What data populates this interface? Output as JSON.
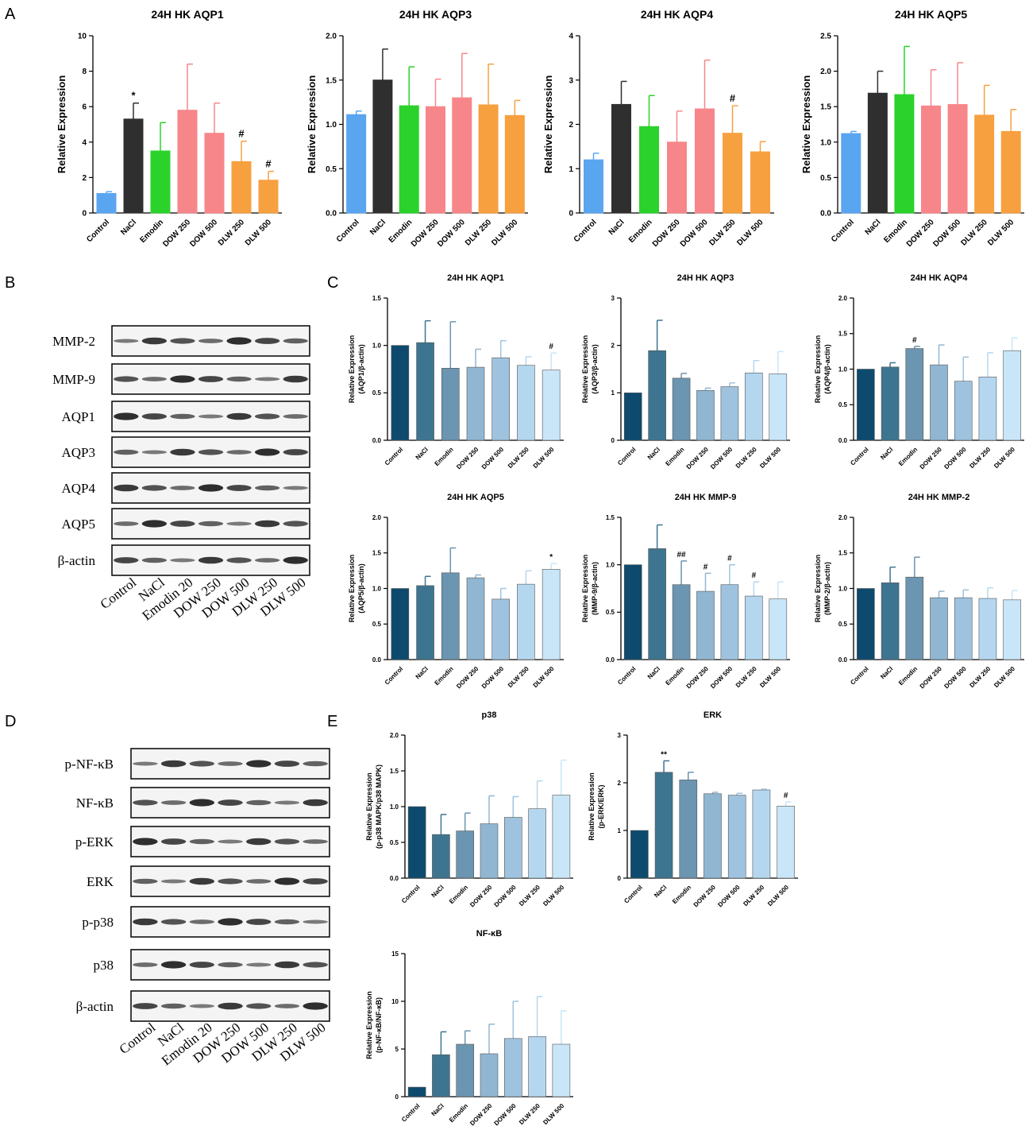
{
  "panel_labels": [
    "A",
    "B",
    "C",
    "D",
    "E"
  ],
  "colors": {
    "a_palette": [
      "#5aa5f0",
      "#2f2f2f",
      "#2bd22b",
      "#f7868a",
      "#f7868a",
      "#f7a040",
      "#f7a040"
    ],
    "blue_palette": [
      "#0d4a6e",
      "#3d7590",
      "#6b95b0",
      "#90b6d2",
      "#9fc3de",
      "#b4d7ef",
      "#c9e6f8"
    ]
  },
  "blots": {
    "B": {
      "bands": [
        "MMP-2",
        "MMP-9",
        "AQP1",
        "AQP3",
        "AQP4",
        "AQP5",
        "β-actin"
      ],
      "lanes": [
        "Control",
        "NaCl",
        "Emodin 20",
        "DOW 250",
        "DOW 500",
        "DLW 250",
        "DLW 500"
      ]
    },
    "D": {
      "bands": [
        "p-NF-κB",
        "NF-κB",
        "p-ERK",
        "ERK",
        "p-p38",
        "p38",
        "β-actin"
      ],
      "lanes": [
        "Control",
        "NaCl",
        "Emodin 20",
        "DOW 250",
        "DOW 500",
        "DLW 250",
        "DLW 500"
      ]
    }
  },
  "chart_data": [
    {
      "id": "A1",
      "type": "bar",
      "title": "24H HK AQP1",
      "ylabel": "Relative Expression",
      "ylim": [
        0,
        10
      ],
      "ticks": [
        "0",
        "2",
        "4",
        "6",
        "8",
        "10"
      ],
      "categories": [
        "Control",
        "NaCl",
        "Emodin",
        "DOW 250",
        "DOW 500",
        "DLW 250",
        "DLW 500"
      ],
      "values": [
        1.1,
        5.3,
        3.5,
        5.8,
        4.5,
        2.9,
        1.85
      ],
      "errors": [
        0.1,
        0.9,
        1.6,
        2.6,
        1.7,
        1.15,
        0.5
      ],
      "annotations": [
        "",
        "*",
        "",
        "",
        "",
        "#",
        "#"
      ],
      "palette": "a"
    },
    {
      "id": "A2",
      "type": "bar",
      "title": "24H HK AQP3",
      "ylabel": "Relative Expression",
      "ylim": [
        0,
        2
      ],
      "ticks": [
        "0.0",
        "0.5",
        "1.0",
        "1.5",
        "2.0"
      ],
      "categories": [
        "Control",
        "NaCl",
        "Emodin",
        "DOW 250",
        "DOW 500",
        "DLW 250",
        "DLW 500"
      ],
      "values": [
        1.11,
        1.5,
        1.21,
        1.2,
        1.3,
        1.22,
        1.1
      ],
      "errors": [
        0.04,
        0.35,
        0.44,
        0.31,
        0.5,
        0.46,
        0.17
      ],
      "annotations": [
        "",
        "",
        "",
        "",
        "",
        "",
        ""
      ],
      "palette": "a"
    },
    {
      "id": "A3",
      "type": "bar",
      "title": "24H HK AQP4",
      "ylabel": "Relative Expression",
      "ylim": [
        0,
        4
      ],
      "ticks": [
        "0",
        "1",
        "2",
        "3",
        "4"
      ],
      "categories": [
        "Control",
        "NaCl",
        "Emodin",
        "DOW 250",
        "DOW 500",
        "DLW 250",
        "DLW 500"
      ],
      "values": [
        1.2,
        2.45,
        1.95,
        1.6,
        2.35,
        1.8,
        1.38
      ],
      "errors": [
        0.15,
        0.52,
        0.7,
        0.7,
        1.1,
        0.62,
        0.23
      ],
      "annotations": [
        "",
        "",
        "",
        "",
        "",
        "#",
        ""
      ],
      "palette": "a"
    },
    {
      "id": "A4",
      "type": "bar",
      "title": "24H HK AQP5",
      "ylabel": "Relative Expression",
      "ylim": [
        0,
        2.5
      ],
      "ticks": [
        "0.0",
        "0.5",
        "1.0",
        "1.5",
        "2.0",
        "2.5"
      ],
      "categories": [
        "Control",
        "NaCl",
        "Emodin",
        "DOW 250",
        "DOW 500",
        "DLW 250",
        "DLW 500"
      ],
      "values": [
        1.12,
        1.69,
        1.67,
        1.51,
        1.53,
        1.38,
        1.15
      ],
      "errors": [
        0.03,
        0.31,
        0.68,
        0.51,
        0.59,
        0.42,
        0.31
      ],
      "annotations": [
        "",
        "",
        "",
        "",
        "",
        "",
        ""
      ],
      "palette": "a"
    },
    {
      "id": "C1",
      "type": "bar",
      "title": "24H HK AQP1",
      "ylabel": "Relative Expression",
      "ylabel2": "(AQP1/β-actin)",
      "ylim": [
        0,
        1.5
      ],
      "ticks": [
        "0.0",
        "0.5",
        "1.0",
        "1.5"
      ],
      "categories": [
        "Control",
        "NaCl",
        "Emodin",
        "DOW 250",
        "DOW 500",
        "DLW 250",
        "DLW 500"
      ],
      "values": [
        1.0,
        1.03,
        0.76,
        0.77,
        0.87,
        0.79,
        0.74
      ],
      "errors": [
        0,
        0.23,
        0.49,
        0.19,
        0.18,
        0.09,
        0.18
      ],
      "annotations": [
        "",
        "",
        "",
        "",
        "",
        "",
        "#"
      ],
      "palette": "blue"
    },
    {
      "id": "C2",
      "type": "bar",
      "title": "24H HK AQP3",
      "ylabel": "Relative Expression",
      "ylabel2": "(AQP3/β-actin)",
      "ylim": [
        0,
        3
      ],
      "ticks": [
        "0",
        "1",
        "2",
        "3"
      ],
      "categories": [
        "Control",
        "NaCl",
        "Emodin",
        "DOW 250",
        "DOW 500",
        "DLW 250",
        "DLW 500"
      ],
      "values": [
        1.0,
        1.89,
        1.31,
        1.05,
        1.13,
        1.42,
        1.4
      ],
      "errors": [
        0,
        0.64,
        0.1,
        0.05,
        0.08,
        0.26,
        0.47
      ],
      "annotations": [
        "",
        "",
        "",
        "",
        "",
        "",
        ""
      ],
      "palette": "blue"
    },
    {
      "id": "C3",
      "type": "bar",
      "title": "24H HK AQP4",
      "ylabel": "Relative Expression",
      "ylabel2": "(AQP4/β-actin)",
      "ylim": [
        0,
        2
      ],
      "ticks": [
        "0.0",
        "0.5",
        "1.0",
        "1.5",
        "2.0"
      ],
      "categories": [
        "Control",
        "NaCl",
        "Emodin",
        "DOW 250",
        "DOW 500",
        "DLW 250",
        "DLW 500"
      ],
      "values": [
        1.0,
        1.03,
        1.29,
        1.06,
        0.83,
        0.89,
        1.26
      ],
      "errors": [
        0,
        0.06,
        0.03,
        0.28,
        0.34,
        0.34,
        0.18
      ],
      "annotations": [
        "",
        "",
        "#",
        "",
        "",
        "",
        ""
      ],
      "palette": "blue"
    },
    {
      "id": "C4",
      "type": "bar",
      "title": "24H HK AQP5",
      "ylabel": "Relative Expression",
      "ylabel2": "(AQP5/β-actin)",
      "ylim": [
        0,
        2
      ],
      "ticks": [
        "0.0",
        "0.5",
        "1.0",
        "1.5",
        "2.0"
      ],
      "categories": [
        "Control",
        "NaCl",
        "Emodin",
        "DOW 250",
        "DOW 500",
        "DLW 250",
        "DLW 500"
      ],
      "values": [
        1.0,
        1.04,
        1.22,
        1.15,
        0.85,
        1.06,
        1.27
      ],
      "errors": [
        0,
        0.13,
        0.35,
        0.04,
        0.15,
        0.19,
        0.08
      ],
      "annotations": [
        "",
        "",
        "",
        "",
        "",
        "",
        "*"
      ],
      "palette": "blue"
    },
    {
      "id": "C5",
      "type": "bar",
      "title": "24H HK MMP-9",
      "ylabel": "Relative Expression",
      "ylabel2": "(MMP-9/β-actin)",
      "ylim": [
        0,
        1.5
      ],
      "ticks": [
        "0.0",
        "0.5",
        "1.0",
        "1.5"
      ],
      "categories": [
        "Control",
        "NaCl",
        "Emodin",
        "DOW 250",
        "DOW 500",
        "DLW 250",
        "DLW 500"
      ],
      "values": [
        1.0,
        1.17,
        0.79,
        0.72,
        0.79,
        0.67,
        0.64
      ],
      "errors": [
        0,
        0.25,
        0.25,
        0.19,
        0.21,
        0.15,
        0.18
      ],
      "annotations": [
        "",
        "",
        "##",
        "#",
        "#",
        "#",
        ""
      ],
      "palette": "blue"
    },
    {
      "id": "C6",
      "type": "bar",
      "title": "24H HK MMP-2",
      "ylabel": "Relative Expression",
      "ylabel2": "(MMP-2/β-actin)",
      "ylim": [
        0,
        2
      ],
      "ticks": [
        "0.0",
        "0.5",
        "1.0",
        "1.5",
        "2.0"
      ],
      "categories": [
        "Control",
        "NaCl",
        "Emodin",
        "DOW 250",
        "DOW 500",
        "DLW 250",
        "DLW 500"
      ],
      "values": [
        1.0,
        1.08,
        1.16,
        0.87,
        0.87,
        0.86,
        0.84
      ],
      "errors": [
        0,
        0.22,
        0.28,
        0.09,
        0.11,
        0.15,
        0.13
      ],
      "annotations": [
        "",
        "",
        "",
        "",
        "",
        "",
        ""
      ],
      "palette": "blue"
    },
    {
      "id": "E1",
      "type": "bar",
      "title": "p38",
      "ylabel": "Relative Expression",
      "ylabel2": "(p-p38 MAPK/p38 MAPK)",
      "ylim": [
        0,
        2
      ],
      "ticks": [
        "0.0",
        "0.5",
        "1.0",
        "1.5",
        "2.0"
      ],
      "categories": [
        "Control",
        "NaCl",
        "Emodin",
        "DOW 250",
        "DOW 500",
        "DLW 250",
        "DLW 500"
      ],
      "values": [
        1.0,
        0.61,
        0.66,
        0.76,
        0.85,
        0.97,
        1.16
      ],
      "errors": [
        0,
        0.28,
        0.25,
        0.39,
        0.29,
        0.39,
        0.49
      ],
      "annotations": [
        "",
        "",
        "",
        "",
        "",
        "",
        ""
      ],
      "palette": "blue"
    },
    {
      "id": "E2",
      "type": "bar",
      "title": "ERK",
      "ylabel": "Relative Expression",
      "ylabel2": "(p-ERK/ERK)",
      "ylim": [
        0,
        3
      ],
      "ticks": [
        "0",
        "1",
        "2",
        "3"
      ],
      "categories": [
        "Control",
        "NaCl",
        "Emodin",
        "DOW 250",
        "DOW 500",
        "DLW 250",
        "DLW 500"
      ],
      "values": [
        1.0,
        2.22,
        2.06,
        1.77,
        1.74,
        1.85,
        1.51
      ],
      "errors": [
        0,
        0.24,
        0.16,
        0.03,
        0.04,
        0.02,
        0.09
      ],
      "annotations": [
        "",
        "**",
        "",
        "",
        "",
        "",
        "#"
      ],
      "palette": "blue"
    },
    {
      "id": "E3",
      "type": "bar",
      "title": "NF-κB",
      "ylabel": "Relative Expression",
      "ylabel2": "(p-NF-κB/NF-κB)",
      "ylim": [
        0,
        15
      ],
      "ticks": [
        "0",
        "5",
        "10",
        "15"
      ],
      "categories": [
        "Control",
        "NaCl",
        "Emodin",
        "DOW 250",
        "DOW 500",
        "DLW 250",
        "DLW 500"
      ],
      "values": [
        1.0,
        4.4,
        5.5,
        4.5,
        6.1,
        6.3,
        5.5
      ],
      "errors": [
        0,
        2.4,
        1.4,
        3.1,
        3.9,
        4.2,
        3.5
      ],
      "annotations": [
        "",
        "",
        "",
        "",
        "",
        "",
        ""
      ],
      "palette": "blue"
    }
  ]
}
